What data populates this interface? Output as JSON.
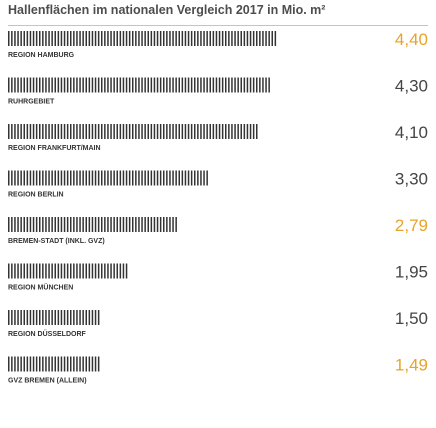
{
  "chart_data": {
    "type": "bar",
    "orientation": "horizontal",
    "title": "Hallenflächen im nationalen Vergleich 2017 in Mio. m²",
    "categories": [
      "REGION HAMBURG",
      "RUHRGEBIET",
      "REGION FRANKFURT/MAIN",
      "REGION BERLIN",
      "BREMEN-STADT (INKL. GVZ)",
      "REGION MÜNCHEN",
      "REGION DÜSSELDORF",
      "GVZ BREMEN (ALLEIN)"
    ],
    "values": [
      4.4,
      4.3,
      4.1,
      3.3,
      2.79,
      1.95,
      1.5,
      1.49
    ],
    "value_labels": [
      "4,40",
      "4,30",
      "4,10",
      "3,30",
      "2,79",
      "1,95",
      "1,50",
      "1,49"
    ],
    "highlight": [
      true,
      false,
      false,
      false,
      true,
      false,
      false,
      true
    ],
    "colors": {
      "bar": "#333333",
      "highlight_value": "#e8a329",
      "value": "#454545",
      "label": "#333333",
      "title": "#4d4d4d",
      "rule": "#c4c4c4"
    }
  }
}
